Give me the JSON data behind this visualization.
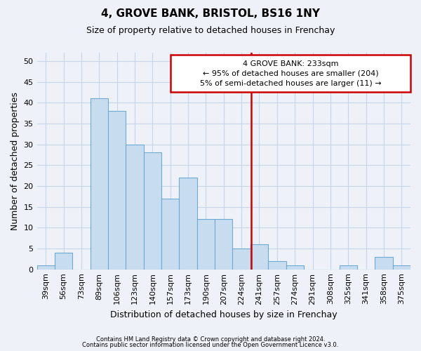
{
  "title": "4, GROVE BANK, BRISTOL, BS16 1NY",
  "subtitle": "Size of property relative to detached houses in Frenchay",
  "xlabel": "Distribution of detached houses by size in Frenchay",
  "ylabel": "Number of detached properties",
  "categories": [
    "39sqm",
    "56sqm",
    "73sqm",
    "89sqm",
    "106sqm",
    "123sqm",
    "140sqm",
    "157sqm",
    "173sqm",
    "190sqm",
    "207sqm",
    "224sqm",
    "241sqm",
    "257sqm",
    "274sqm",
    "291sqm",
    "308sqm",
    "325sqm",
    "341sqm",
    "358sqm",
    "375sqm"
  ],
  "values": [
    1,
    4,
    0,
    41,
    38,
    30,
    28,
    17,
    22,
    12,
    12,
    5,
    6,
    2,
    1,
    0,
    0,
    1,
    0,
    3,
    1
  ],
  "bar_color": "#c8dcf0",
  "bar_edge_color": "#6aaad4",
  "grid_color": "#c8d4e8",
  "vline_color": "#cc0000",
  "annotation_text": "4 GROVE BANK: 233sqm\n← 95% of detached houses are smaller (204)\n5% of semi-detached houses are larger (11) →",
  "annotation_box_color": "#cc0000",
  "ylim": [
    0,
    52
  ],
  "yticks": [
    0,
    5,
    10,
    15,
    20,
    25,
    30,
    35,
    40,
    45,
    50
  ],
  "footer1": "Contains HM Land Registry data © Crown copyright and database right 2024.",
  "footer2": "Contains public sector information licensed under the Open Government Licence v3.0.",
  "background_color": "#eef2f8",
  "title_fontsize": 11,
  "subtitle_fontsize": 9,
  "tick_fontsize": 8,
  "ylabel_fontsize": 9,
  "xlabel_fontsize": 9,
  "annotation_fontsize": 8,
  "footer_fontsize": 6
}
